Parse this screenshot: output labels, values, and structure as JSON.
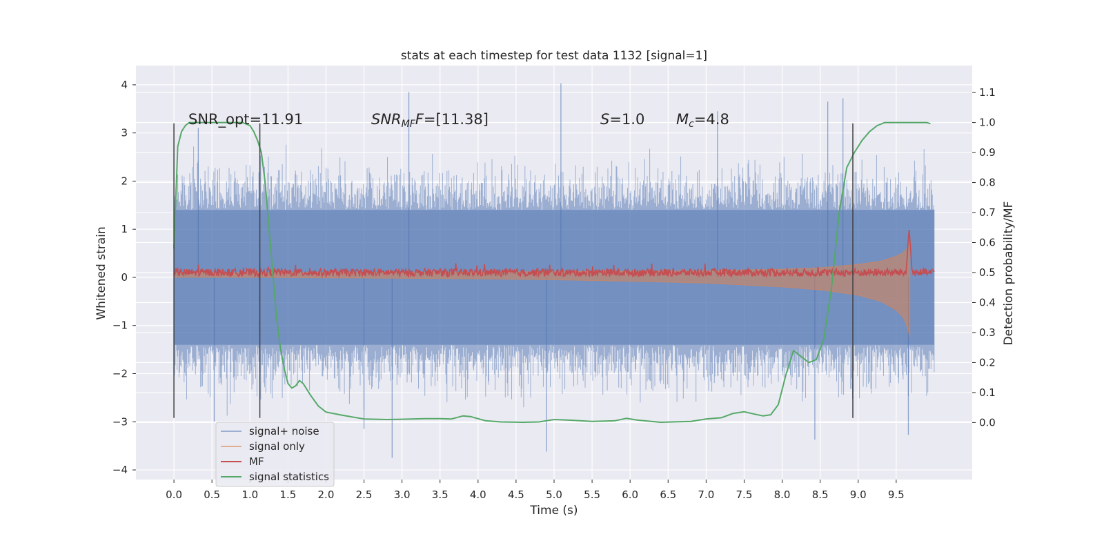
{
  "chart_data": {
    "type": "line",
    "title": "stats at each timestep for test data 1132 [signal=1]",
    "xlabel": "Time (s)",
    "ylabel_left": "Whitened strain",
    "ylabel_right": "Detection probability/MF",
    "xlim": [
      -0.5,
      10.5
    ],
    "ylim_left": [
      -4.2,
      4.4
    ],
    "ylim_right": [
      -0.19,
      1.19
    ],
    "xticks": [
      "0.0",
      "0.5",
      "1.0",
      "1.5",
      "2.0",
      "2.5",
      "3.0",
      "3.5",
      "4.0",
      "4.5",
      "5.0",
      "5.5",
      "6.0",
      "6.5",
      "7.0",
      "7.5",
      "8.0",
      "8.5",
      "9.0",
      "9.5"
    ],
    "yticks_left": [
      "4",
      "3",
      "2",
      "1",
      "0",
      "−1",
      "−2",
      "−3",
      "−4"
    ],
    "yticks_right": [
      "1.1",
      "1.0",
      "0.9",
      "0.8",
      "0.7",
      "0.6",
      "0.5",
      "0.4",
      "0.3",
      "0.2",
      "0.1",
      "0.0"
    ],
    "grid": true,
    "annotations": {
      "snr_opt": "SNR_opt=11.91",
      "snr_mf_label": "SNR",
      "snr_mf_sub": "MF",
      "snr_mf_value": "=[11.38]",
      "s_label": "S",
      "s_value": "=1.0",
      "mc_label": "M",
      "mc_sub": "c",
      "mc_value": "=4.8"
    },
    "vertical_lines_x": [
      0.0,
      1.13,
      8.93
    ],
    "legend": {
      "placement": "lower-left",
      "entries": [
        "signal+ noise",
        "signal only",
        "MF",
        "signal statistics"
      ]
    },
    "series": [
      {
        "name": "signal+ noise",
        "axis": "left",
        "style": "noise band",
        "x_range": [
          0.0,
          10.0
        ],
        "core_band": [
          -1.4,
          1.4
        ],
        "typical_extremes": [
          -2.6,
          2.6
        ],
        "spikes": [
          {
            "x": 3.09,
            "y": 3.85
          },
          {
            "x": 5.09,
            "y": 4.03
          },
          {
            "x": 7.15,
            "y": 3.45
          },
          {
            "x": 8.8,
            "y": 3.72
          },
          {
            "x": 8.6,
            "y": 3.65
          },
          {
            "x": 0.32,
            "y": 3.1
          },
          {
            "x": 2.87,
            "y": -3.75
          },
          {
            "x": 4.9,
            "y": -3.62
          },
          {
            "x": 9.66,
            "y": -3.27
          },
          {
            "x": 8.43,
            "y": -3.37
          },
          {
            "x": 2.5,
            "y": -3.15
          },
          {
            "x": 0.53,
            "y": -3.0
          }
        ],
        "color": "#4c72b0"
      },
      {
        "name": "signal only",
        "axis": "left",
        "style": "chirp envelope",
        "x": [
          0.0,
          1.0,
          2.0,
          3.0,
          4.0,
          5.0,
          6.0,
          7.0,
          8.0,
          8.5,
          9.0,
          9.3,
          9.5,
          9.6,
          9.65,
          9.68
        ],
        "upper": [
          0.1,
          0.1,
          0.1,
          0.11,
          0.11,
          0.12,
          0.13,
          0.14,
          0.17,
          0.2,
          0.27,
          0.34,
          0.44,
          0.52,
          0.62,
          0.78
        ],
        "lower": [
          0.0,
          0.0,
          -0.01,
          -0.02,
          -0.03,
          -0.05,
          -0.08,
          -0.12,
          -0.2,
          -0.26,
          -0.37,
          -0.5,
          -0.68,
          -0.85,
          -1.05,
          -1.25
        ],
        "color": "#dd8452"
      },
      {
        "name": "MF",
        "axis": "left",
        "style": "noisy line",
        "x_range": [
          0.0,
          10.0
        ],
        "baseline": 0.1,
        "spread": 0.1,
        "peak": {
          "x": 9.67,
          "y": 1.02
        },
        "color": "#c44e52"
      },
      {
        "name": "signal statistics",
        "axis": "right",
        "x": [
          0.0,
          0.05,
          0.1,
          0.15,
          0.2,
          0.3,
          0.5,
          0.7,
          0.9,
          1.0,
          1.05,
          1.1,
          1.15,
          1.2,
          1.25,
          1.3,
          1.35,
          1.4,
          1.45,
          1.5,
          1.55,
          1.6,
          1.65,
          1.7,
          1.8,
          1.9,
          2.0,
          2.2,
          2.5,
          2.8,
          3.0,
          3.3,
          3.5,
          3.65,
          3.8,
          3.9,
          4.1,
          4.3,
          4.6,
          4.8,
          5.0,
          5.2,
          5.5,
          5.8,
          5.95,
          6.1,
          6.4,
          6.8,
          7.0,
          7.2,
          7.35,
          7.5,
          7.6,
          7.75,
          7.85,
          7.95,
          8.05,
          8.15,
          8.25,
          8.35,
          8.45,
          8.55,
          8.65,
          8.75,
          8.85,
          8.95,
          9.05,
          9.15,
          9.25,
          9.35,
          9.5,
          9.7,
          9.9,
          9.95
        ],
        "y": [
          0.58,
          0.92,
          0.97,
          0.99,
          1.0,
          1.0,
          1.0,
          1.0,
          1.0,
          0.99,
          0.97,
          0.94,
          0.9,
          0.8,
          0.65,
          0.5,
          0.35,
          0.25,
          0.18,
          0.13,
          0.115,
          0.122,
          0.14,
          0.13,
          0.09,
          0.055,
          0.035,
          0.025,
          0.012,
          0.01,
          0.011,
          0.013,
          0.013,
          0.012,
          0.022,
          0.02,
          0.006,
          0.002,
          0.001,
          0.002,
          0.01,
          0.008,
          0.004,
          0.006,
          0.014,
          0.008,
          0.001,
          0.004,
          0.012,
          0.016,
          0.03,
          0.036,
          0.03,
          0.022,
          0.026,
          0.06,
          0.16,
          0.24,
          0.22,
          0.2,
          0.21,
          0.28,
          0.45,
          0.7,
          0.85,
          0.9,
          0.94,
          0.97,
          0.99,
          1.0,
          1.0,
          1.0,
          1.0,
          0.996
        ],
        "color": "#55a868"
      }
    ]
  }
}
